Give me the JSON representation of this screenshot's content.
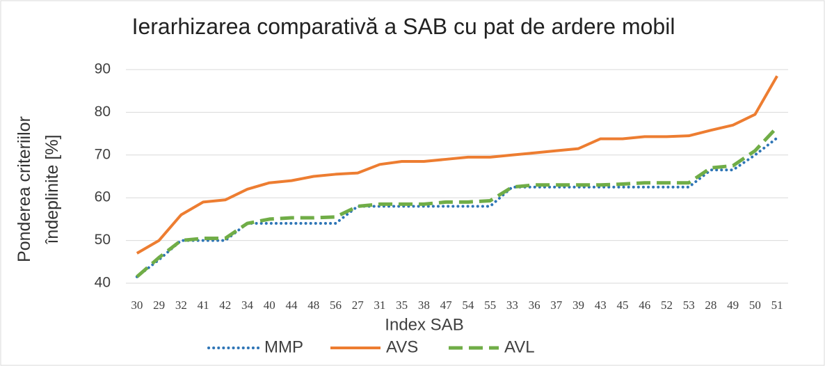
{
  "chart_data": {
    "type": "line",
    "title": "Ierarhizarea comparativă a SAB cu pat de ardere mobil",
    "x_label": "Index SAB",
    "y_label": "Ponderea criteriilor îndeplinite [%]",
    "categories": [
      "30",
      "29",
      "32",
      "41",
      "42",
      "34",
      "40",
      "44",
      "48",
      "56",
      "27",
      "31",
      "35",
      "38",
      "47",
      "54",
      "55",
      "33",
      "36",
      "37",
      "39",
      "43",
      "45",
      "46",
      "52",
      "53",
      "28",
      "49",
      "50",
      "51"
    ],
    "series": [
      {
        "name": "MMP",
        "color": "#2e75b6",
        "style": "dotted",
        "values": [
          41.5,
          45.5,
          50,
          50,
          50,
          54,
          54,
          54,
          54,
          54,
          58,
          58,
          58,
          58,
          58,
          58,
          58,
          62.5,
          62.5,
          62.5,
          62.5,
          62.5,
          62.5,
          62.5,
          62.5,
          62.5,
          66.5,
          66.5,
          70,
          74
        ]
      },
      {
        "name": "AVS",
        "color": "#ed7d31",
        "style": "solid",
        "values": [
          47,
          50,
          56,
          59,
          59.5,
          62,
          63.5,
          64,
          65,
          65.5,
          65.8,
          67.8,
          68.5,
          68.5,
          69,
          69.5,
          69.5,
          70,
          70.5,
          71,
          71.5,
          73.8,
          73.8,
          74.3,
          74.3,
          74.5,
          75.8,
          77,
          79.5,
          88.5
        ]
      },
      {
        "name": "AVL",
        "color": "#70ad47",
        "style": "dashed",
        "values": [
          41.5,
          46,
          50,
          50.5,
          50.5,
          54,
          55,
          55.3,
          55.3,
          55.5,
          58,
          58.5,
          58.5,
          58.5,
          59,
          59,
          59.3,
          62.5,
          63,
          63,
          63,
          63,
          63.2,
          63.5,
          63.5,
          63.5,
          67,
          67.5,
          71,
          76.5
        ]
      }
    ],
    "ylim": [
      40,
      90
    ],
    "yticks": [
      40,
      50,
      60,
      70,
      80,
      90
    ],
    "grid": true,
    "legend": "bottom"
  }
}
